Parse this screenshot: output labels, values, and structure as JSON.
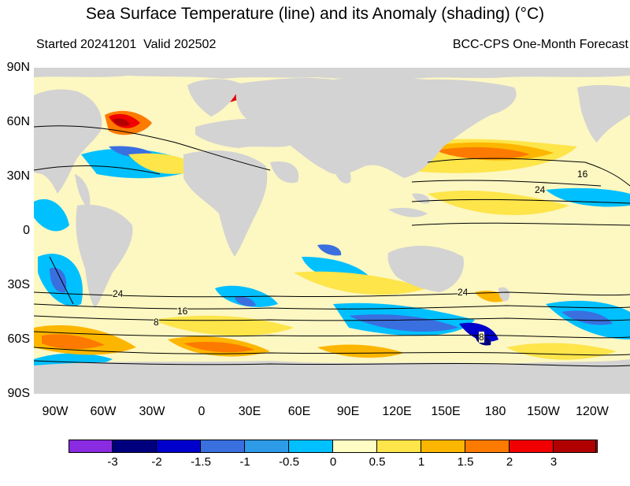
{
  "title": "Sea Surface Temperature (line) and its Anomaly (shading) (°C)",
  "subtitle_left": "Started 20241201  Valid 202502",
  "subtitle_right": "BCC-CPS One-Month Forecast",
  "lat_labels": [
    "90N",
    "60N",
    "30N",
    "0",
    "30S",
    "60S",
    "90S"
  ],
  "lon_labels": [
    "90W",
    "60W",
    "30W",
    "0",
    "30E",
    "60E",
    "90E",
    "120E",
    "150E",
    "180",
    "150W",
    "120W"
  ],
  "contour_labels": [
    "16",
    "24",
    "24",
    "16",
    "8",
    "8",
    "24"
  ],
  "colorbar": {
    "colors": [
      "#8a2be2",
      "#00007f",
      "#0000cd",
      "#3a6fe0",
      "#2e9be8",
      "#00c0ff",
      "#fffcc4",
      "#fde54a",
      "#fdb600",
      "#fd7a00",
      "#f00000",
      "#b00000"
    ],
    "labels": [
      "-3",
      "-2",
      "-1.5",
      "-1",
      "-0.5",
      "0",
      "0.5",
      "1",
      "1.5",
      "2",
      "3"
    ]
  },
  "map_colors": {
    "ocean_base": "#fdf7c2",
    "land": "#d3d3d3",
    "contour": "#000000"
  }
}
